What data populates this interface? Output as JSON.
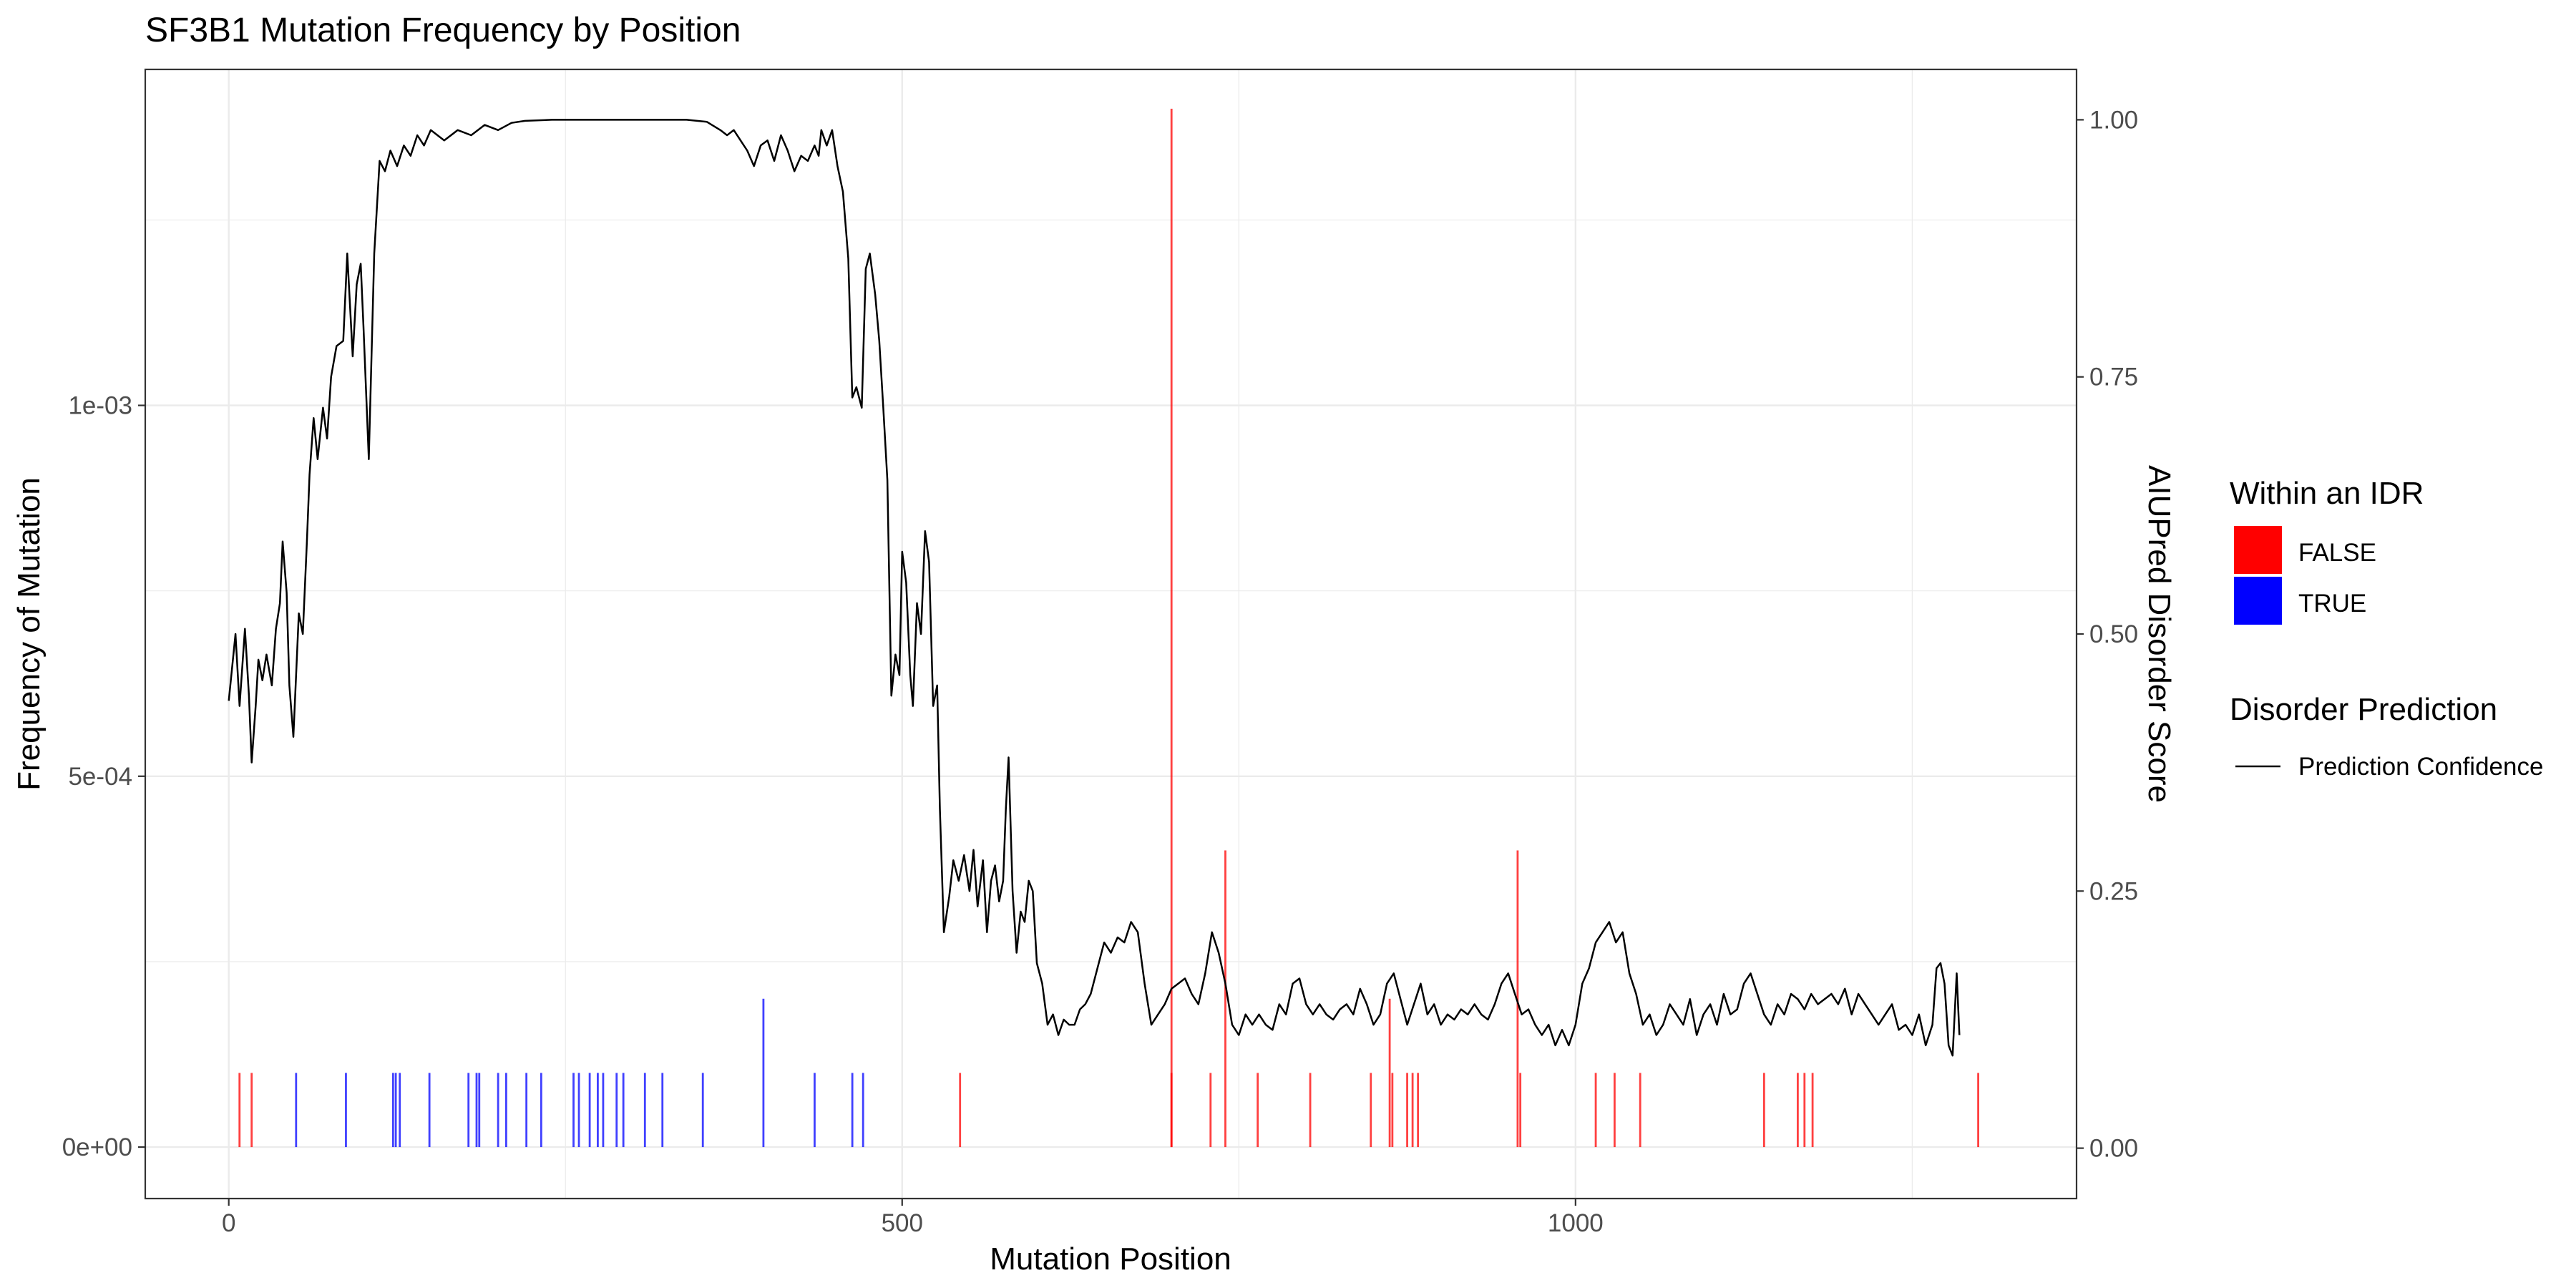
{
  "chart_data": {
    "type": "bar+line",
    "title": "SF3B1 Mutation Frequency by Position",
    "xlabel": "Mutation Position",
    "ylabel": "Frequency of Mutation",
    "y2label": "AIUPred Disorder Score",
    "xlim": [
      -62,
      1372
    ],
    "ylim": [
      -6.94e-05,
      0.001453
    ],
    "y2lim": [
      -0.049,
      1.049
    ],
    "grid": true,
    "x_ticks": [
      {
        "value": 0,
        "label": "0"
      },
      {
        "value": 500,
        "label": "500"
      },
      {
        "value": 1000,
        "label": "1000"
      }
    ],
    "y_ticks": [
      {
        "value": 0,
        "label": "0e+00"
      },
      {
        "value": 0.0005,
        "label": "5e-04"
      },
      {
        "value": 0.001,
        "label": "1e-03"
      }
    ],
    "y2_ticks": [
      {
        "value": 0,
        "label": "0.00"
      },
      {
        "value": 0.25,
        "label": "0.25"
      },
      {
        "value": 0.5,
        "label": "0.50"
      },
      {
        "value": 0.75,
        "label": "0.75"
      },
      {
        "value": 1.0,
        "label": "1.00"
      }
    ],
    "legend_idr": {
      "title": "Within an IDR",
      "entries": [
        {
          "label": "FALSE",
          "color": "#ff0000"
        },
        {
          "label": "TRUE",
          "color": "#0000ff"
        }
      ]
    },
    "legend_line": {
      "title": "Disorder Prediction",
      "entries": [
        {
          "label": "Prediction Confidence",
          "color": "#000000"
        }
      ]
    },
    "mutations": [
      {
        "pos": 8,
        "freq": 0.0001,
        "idr": false
      },
      {
        "pos": 17,
        "freq": 0.0001,
        "idr": false
      },
      {
        "pos": 50,
        "freq": 0.0001,
        "idr": true
      },
      {
        "pos": 87,
        "freq": 0.0001,
        "idr": true
      },
      {
        "pos": 122,
        "freq": 0.0001,
        "idr": true
      },
      {
        "pos": 124,
        "freq": 0.0001,
        "idr": true
      },
      {
        "pos": 127,
        "freq": 0.0001,
        "idr": true
      },
      {
        "pos": 149,
        "freq": 0.0001,
        "idr": true
      },
      {
        "pos": 178,
        "freq": 0.0001,
        "idr": true
      },
      {
        "pos": 184,
        "freq": 0.0001,
        "idr": true
      },
      {
        "pos": 186,
        "freq": 0.0001,
        "idr": true
      },
      {
        "pos": 200,
        "freq": 0.0001,
        "idr": true
      },
      {
        "pos": 206,
        "freq": 0.0001,
        "idr": true
      },
      {
        "pos": 221,
        "freq": 0.0001,
        "idr": true
      },
      {
        "pos": 232,
        "freq": 0.0001,
        "idr": true
      },
      {
        "pos": 256,
        "freq": 0.0001,
        "idr": true
      },
      {
        "pos": 260,
        "freq": 0.0001,
        "idr": true
      },
      {
        "pos": 268,
        "freq": 0.0001,
        "idr": true
      },
      {
        "pos": 274,
        "freq": 0.0001,
        "idr": true
      },
      {
        "pos": 278,
        "freq": 0.0001,
        "idr": true
      },
      {
        "pos": 288,
        "freq": 0.0001,
        "idr": true
      },
      {
        "pos": 293,
        "freq": 0.0001,
        "idr": true
      },
      {
        "pos": 309,
        "freq": 0.0001,
        "idr": true
      },
      {
        "pos": 322,
        "freq": 0.0001,
        "idr": true
      },
      {
        "pos": 352,
        "freq": 0.0001,
        "idr": true
      },
      {
        "pos": 397,
        "freq": 0.0002,
        "idr": true
      },
      {
        "pos": 435,
        "freq": 0.0001,
        "idr": true
      },
      {
        "pos": 463,
        "freq": 0.0001,
        "idr": true
      },
      {
        "pos": 471,
        "freq": 0.0001,
        "idr": true
      },
      {
        "pos": 543,
        "freq": 0.0001,
        "idr": false
      },
      {
        "pos": 700,
        "freq": 0.0014,
        "idr": false
      },
      {
        "pos": 700,
        "freq": 0.0001,
        "idr": false
      },
      {
        "pos": 729,
        "freq": 0.0001,
        "idr": false
      },
      {
        "pos": 740,
        "freq": 0.0004,
        "idr": false
      },
      {
        "pos": 764,
        "freq": 0.0001,
        "idr": false
      },
      {
        "pos": 803,
        "freq": 0.0001,
        "idr": false
      },
      {
        "pos": 848,
        "freq": 0.0001,
        "idr": false
      },
      {
        "pos": 862,
        "freq": 0.0002,
        "idr": false
      },
      {
        "pos": 864,
        "freq": 0.0001,
        "idr": false
      },
      {
        "pos": 875,
        "freq": 0.0001,
        "idr": false
      },
      {
        "pos": 879,
        "freq": 0.0001,
        "idr": false
      },
      {
        "pos": 883,
        "freq": 0.0001,
        "idr": false
      },
      {
        "pos": 957,
        "freq": 0.0004,
        "idr": false
      },
      {
        "pos": 959,
        "freq": 0.0001,
        "idr": false
      },
      {
        "pos": 1015,
        "freq": 0.0001,
        "idr": false
      },
      {
        "pos": 1029,
        "freq": 0.0001,
        "idr": false
      },
      {
        "pos": 1048,
        "freq": 0.0001,
        "idr": false
      },
      {
        "pos": 1140,
        "freq": 0.0001,
        "idr": false
      },
      {
        "pos": 1165,
        "freq": 0.0001,
        "idr": false
      },
      {
        "pos": 1170,
        "freq": 0.0001,
        "idr": false
      },
      {
        "pos": 1176,
        "freq": 0.0001,
        "idr": false
      },
      {
        "pos": 1299,
        "freq": 0.0001,
        "idr": false
      }
    ],
    "disorder_line": {
      "name": "Prediction Confidence",
      "points": [
        [
          0,
          0.435
        ],
        [
          5,
          0.5
        ],
        [
          8,
          0.43
        ],
        [
          12,
          0.505
        ],
        [
          15,
          0.44
        ],
        [
          17,
          0.375
        ],
        [
          20,
          0.43
        ],
        [
          22,
          0.475
        ],
        [
          25,
          0.455
        ],
        [
          28,
          0.48
        ],
        [
          32,
          0.45
        ],
        [
          35,
          0.505
        ],
        [
          38,
          0.53
        ],
        [
          40,
          0.59
        ],
        [
          43,
          0.54
        ],
        [
          45,
          0.45
        ],
        [
          48,
          0.4
        ],
        [
          52,
          0.52
        ],
        [
          55,
          0.5
        ],
        [
          58,
          0.59
        ],
        [
          60,
          0.655
        ],
        [
          63,
          0.71
        ],
        [
          66,
          0.67
        ],
        [
          70,
          0.72
        ],
        [
          73,
          0.69
        ],
        [
          76,
          0.75
        ],
        [
          80,
          0.78
        ],
        [
          85,
          0.785
        ],
        [
          88,
          0.87
        ],
        [
          92,
          0.77
        ],
        [
          95,
          0.84
        ],
        [
          98,
          0.86
        ],
        [
          100,
          0.8
        ],
        [
          104,
          0.67
        ],
        [
          108,
          0.87
        ],
        [
          112,
          0.96
        ],
        [
          116,
          0.95
        ],
        [
          120,
          0.97
        ],
        [
          125,
          0.955
        ],
        [
          130,
          0.975
        ],
        [
          135,
          0.965
        ],
        [
          140,
          0.985
        ],
        [
          145,
          0.975
        ],
        [
          150,
          0.99
        ],
        [
          160,
          0.98
        ],
        [
          170,
          0.99
        ],
        [
          180,
          0.985
        ],
        [
          190,
          0.995
        ],
        [
          200,
          0.99
        ],
        [
          210,
          0.997
        ],
        [
          220,
          0.999
        ],
        [
          240,
          1.0
        ],
        [
          260,
          1.0
        ],
        [
          300,
          1.0
        ],
        [
          340,
          1.0
        ],
        [
          355,
          0.998
        ],
        [
          365,
          0.99
        ],
        [
          370,
          0.985
        ],
        [
          375,
          0.99
        ],
        [
          380,
          0.98
        ],
        [
          385,
          0.97
        ],
        [
          390,
          0.955
        ],
        [
          395,
          0.975
        ],
        [
          400,
          0.98
        ],
        [
          405,
          0.96
        ],
        [
          410,
          0.985
        ],
        [
          415,
          0.97
        ],
        [
          420,
          0.95
        ],
        [
          425,
          0.965
        ],
        [
          430,
          0.96
        ],
        [
          435,
          0.975
        ],
        [
          438,
          0.965
        ],
        [
          440,
          0.99
        ],
        [
          444,
          0.975
        ],
        [
          448,
          0.99
        ],
        [
          452,
          0.955
        ],
        [
          456,
          0.93
        ],
        [
          460,
          0.865
        ],
        [
          463,
          0.73
        ],
        [
          466,
          0.74
        ],
        [
          470,
          0.72
        ],
        [
          473,
          0.855
        ],
        [
          476,
          0.87
        ],
        [
          480,
          0.83
        ],
        [
          483,
          0.785
        ],
        [
          486,
          0.72
        ],
        [
          489,
          0.65
        ],
        [
          492,
          0.44
        ],
        [
          495,
          0.48
        ],
        [
          498,
          0.46
        ],
        [
          500,
          0.58
        ],
        [
          503,
          0.55
        ],
        [
          506,
          0.46
        ],
        [
          508,
          0.43
        ],
        [
          511,
          0.53
        ],
        [
          514,
          0.5
        ],
        [
          517,
          0.6
        ],
        [
          520,
          0.57
        ],
        [
          523,
          0.43
        ],
        [
          526,
          0.45
        ],
        [
          528,
          0.33
        ],
        [
          531,
          0.21
        ],
        [
          535,
          0.245
        ],
        [
          538,
          0.28
        ],
        [
          542,
          0.26
        ],
        [
          546,
          0.285
        ],
        [
          550,
          0.25
        ],
        [
          553,
          0.29
        ],
        [
          556,
          0.235
        ],
        [
          560,
          0.28
        ],
        [
          563,
          0.21
        ],
        [
          566,
          0.26
        ],
        [
          569,
          0.275
        ],
        [
          572,
          0.24
        ],
        [
          575,
          0.26
        ],
        [
          577,
          0.33
        ],
        [
          579,
          0.38
        ],
        [
          582,
          0.25
        ],
        [
          585,
          0.19
        ],
        [
          588,
          0.23
        ],
        [
          591,
          0.22
        ],
        [
          594,
          0.26
        ],
        [
          597,
          0.25
        ],
        [
          600,
          0.18
        ],
        [
          604,
          0.16
        ],
        [
          608,
          0.12
        ],
        [
          612,
          0.13
        ],
        [
          616,
          0.11
        ],
        [
          620,
          0.125
        ],
        [
          624,
          0.12
        ],
        [
          628,
          0.12
        ],
        [
          632,
          0.135
        ],
        [
          636,
          0.14
        ],
        [
          640,
          0.15
        ],
        [
          645,
          0.175
        ],
        [
          650,
          0.2
        ],
        [
          655,
          0.19
        ],
        [
          660,
          0.205
        ],
        [
          665,
          0.2
        ],
        [
          670,
          0.22
        ],
        [
          675,
          0.21
        ],
        [
          680,
          0.16
        ],
        [
          685,
          0.12
        ],
        [
          690,
          0.13
        ],
        [
          695,
          0.14
        ],
        [
          700,
          0.155
        ],
        [
          705,
          0.16
        ],
        [
          710,
          0.165
        ],
        [
          715,
          0.15
        ],
        [
          720,
          0.14
        ],
        [
          725,
          0.17
        ],
        [
          730,
          0.21
        ],
        [
          735,
          0.19
        ],
        [
          740,
          0.16
        ],
        [
          745,
          0.12
        ],
        [
          750,
          0.11
        ],
        [
          755,
          0.13
        ],
        [
          760,
          0.12
        ],
        [
          765,
          0.13
        ],
        [
          770,
          0.12
        ],
        [
          775,
          0.115
        ],
        [
          780,
          0.14
        ],
        [
          785,
          0.13
        ],
        [
          790,
          0.16
        ],
        [
          795,
          0.165
        ],
        [
          800,
          0.14
        ],
        [
          805,
          0.13
        ],
        [
          810,
          0.14
        ],
        [
          815,
          0.13
        ],
        [
          820,
          0.125
        ],
        [
          825,
          0.135
        ],
        [
          830,
          0.14
        ],
        [
          835,
          0.13
        ],
        [
          840,
          0.155
        ],
        [
          845,
          0.14
        ],
        [
          850,
          0.12
        ],
        [
          855,
          0.13
        ],
        [
          860,
          0.16
        ],
        [
          865,
          0.17
        ],
        [
          870,
          0.145
        ],
        [
          875,
          0.12
        ],
        [
          880,
          0.14
        ],
        [
          885,
          0.16
        ],
        [
          890,
          0.13
        ],
        [
          895,
          0.14
        ],
        [
          900,
          0.12
        ],
        [
          905,
          0.13
        ],
        [
          910,
          0.125
        ],
        [
          915,
          0.135
        ],
        [
          920,
          0.13
        ],
        [
          925,
          0.14
        ],
        [
          930,
          0.13
        ],
        [
          935,
          0.125
        ],
        [
          940,
          0.14
        ],
        [
          945,
          0.16
        ],
        [
          950,
          0.17
        ],
        [
          955,
          0.15
        ],
        [
          960,
          0.13
        ],
        [
          965,
          0.135
        ],
        [
          970,
          0.12
        ],
        [
          975,
          0.11
        ],
        [
          980,
          0.12
        ],
        [
          985,
          0.1
        ],
        [
          990,
          0.115
        ],
        [
          995,
          0.1
        ],
        [
          1000,
          0.12
        ],
        [
          1005,
          0.16
        ],
        [
          1010,
          0.175
        ],
        [
          1015,
          0.2
        ],
        [
          1020,
          0.21
        ],
        [
          1025,
          0.22
        ],
        [
          1030,
          0.2
        ],
        [
          1035,
          0.21
        ],
        [
          1040,
          0.17
        ],
        [
          1045,
          0.15
        ],
        [
          1050,
          0.12
        ],
        [
          1055,
          0.13
        ],
        [
          1060,
          0.11
        ],
        [
          1065,
          0.12
        ],
        [
          1070,
          0.14
        ],
        [
          1075,
          0.13
        ],
        [
          1080,
          0.12
        ],
        [
          1085,
          0.145
        ],
        [
          1090,
          0.11
        ],
        [
          1095,
          0.13
        ],
        [
          1100,
          0.14
        ],
        [
          1105,
          0.12
        ],
        [
          1110,
          0.15
        ],
        [
          1115,
          0.13
        ],
        [
          1120,
          0.135
        ],
        [
          1125,
          0.16
        ],
        [
          1130,
          0.17
        ],
        [
          1135,
          0.15
        ],
        [
          1140,
          0.13
        ],
        [
          1145,
          0.12
        ],
        [
          1150,
          0.14
        ],
        [
          1155,
          0.13
        ],
        [
          1160,
          0.15
        ],
        [
          1165,
          0.145
        ],
        [
          1170,
          0.135
        ],
        [
          1175,
          0.15
        ],
        [
          1180,
          0.14
        ],
        [
          1185,
          0.145
        ],
        [
          1190,
          0.15
        ],
        [
          1195,
          0.14
        ],
        [
          1200,
          0.155
        ],
        [
          1205,
          0.13
        ],
        [
          1210,
          0.15
        ],
        [
          1215,
          0.14
        ],
        [
          1220,
          0.13
        ],
        [
          1225,
          0.12
        ],
        [
          1230,
          0.13
        ],
        [
          1235,
          0.14
        ],
        [
          1240,
          0.115
        ],
        [
          1245,
          0.12
        ],
        [
          1250,
          0.11
        ],
        [
          1255,
          0.13
        ],
        [
          1260,
          0.1
        ],
        [
          1265,
          0.12
        ],
        [
          1268,
          0.175
        ],
        [
          1271,
          0.18
        ],
        [
          1274,
          0.16
        ],
        [
          1277,
          0.1
        ],
        [
          1280,
          0.09
        ],
        [
          1283,
          0.17
        ],
        [
          1285,
          0.11
        ]
      ]
    }
  }
}
